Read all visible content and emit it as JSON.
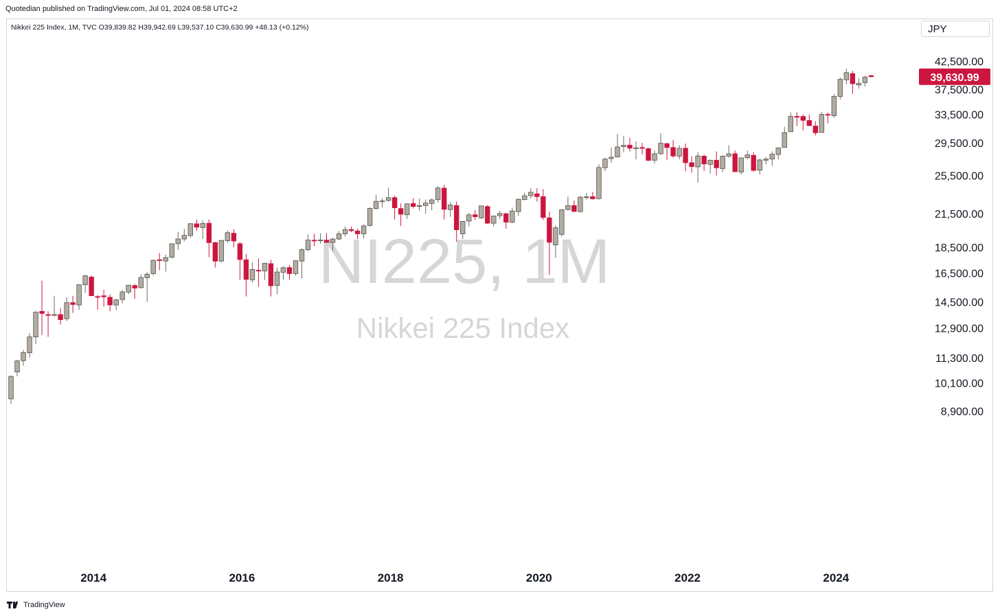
{
  "header": {
    "published_text": "Quotedian published on TradingView.com, Jul 01, 2024 08:58 UTC+2",
    "legend_text": "Nikkei 225 Index, 1M, TVC  O39,839.82  H39,942.69  L39,537.10  C39,630.99  +48.13 (+0.12%)"
  },
  "currency_label": "JPY",
  "footer": {
    "brand": "TradingView"
  },
  "colors": {
    "up": "#b2ada4",
    "down": "#cc163f",
    "price_tag": "#cc163f",
    "watermark": "#d6d6d6"
  },
  "watermark": {
    "symbol": "NI225, 1M",
    "name": "Nikkei 225 Index"
  },
  "chart_data": {
    "type": "candlestick",
    "title": "Nikkei 225 Index, 1M, TVC",
    "scale": "log",
    "y_tick_labels": [
      "42,500.00",
      "37,500.00",
      "33,500.00",
      "29,500.00",
      "25,500.00",
      "21,500.00",
      "18,500.00",
      "16,500.00",
      "14,500.00",
      "12,900.00",
      "11,300.00",
      "10,100.00",
      "8,900.00"
    ],
    "y_ticks": [
      42500,
      37500,
      33500,
      29500,
      25500,
      21500,
      18500,
      16500,
      14500,
      12900,
      11300,
      10100,
      8900
    ],
    "x_tick_labels": [
      "2014",
      "2016",
      "2018",
      "2020",
      "2022",
      "2024"
    ],
    "x_ticks": [
      "2014-01",
      "2016-01",
      "2018-01",
      "2020-01",
      "2022-01",
      "2024-01"
    ],
    "last_price_label": "39,630.99",
    "last_price": 39630.99,
    "series": [
      {
        "t": "2012-12",
        "o": 9400,
        "h": 10430,
        "l": 9200,
        "c": 10395
      },
      {
        "t": "2013-01",
        "o": 10600,
        "h": 11200,
        "l": 10400,
        "c": 11140
      },
      {
        "t": "2013-02",
        "o": 11150,
        "h": 11700,
        "l": 10900,
        "c": 11560
      },
      {
        "t": "2013-03",
        "o": 11550,
        "h": 12600,
        "l": 11300,
        "c": 12400
      },
      {
        "t": "2013-04",
        "o": 12400,
        "h": 13900,
        "l": 12000,
        "c": 13850
      },
      {
        "t": "2013-05",
        "o": 13900,
        "h": 15940,
        "l": 12500,
        "c": 13770
      },
      {
        "t": "2013-06",
        "o": 13700,
        "h": 13900,
        "l": 12400,
        "c": 13680
      },
      {
        "t": "2013-07",
        "o": 13650,
        "h": 14900,
        "l": 13600,
        "c": 13700
      },
      {
        "t": "2013-08",
        "o": 13700,
        "h": 14100,
        "l": 13100,
        "c": 13390
      },
      {
        "t": "2013-09",
        "o": 13450,
        "h": 14800,
        "l": 13300,
        "c": 14450
      },
      {
        "t": "2013-10",
        "o": 14450,
        "h": 14900,
        "l": 13800,
        "c": 14330
      },
      {
        "t": "2013-11",
        "o": 14300,
        "h": 15700,
        "l": 14000,
        "c": 15650
      },
      {
        "t": "2013-12",
        "o": 15650,
        "h": 16350,
        "l": 15100,
        "c": 16290
      },
      {
        "t": "2014-01",
        "o": 16200,
        "h": 16300,
        "l": 14900,
        "c": 14900
      },
      {
        "t": "2014-02",
        "o": 14850,
        "h": 14950,
        "l": 14000,
        "c": 14840
      },
      {
        "t": "2014-03",
        "o": 14900,
        "h": 15300,
        "l": 14200,
        "c": 14830
      },
      {
        "t": "2014-04",
        "o": 14800,
        "h": 15000,
        "l": 13900,
        "c": 14300
      },
      {
        "t": "2014-05",
        "o": 14300,
        "h": 14700,
        "l": 13970,
        "c": 14630
      },
      {
        "t": "2014-06",
        "o": 14650,
        "h": 15300,
        "l": 14400,
        "c": 15160
      },
      {
        "t": "2014-07",
        "o": 15150,
        "h": 15650,
        "l": 15000,
        "c": 15620
      },
      {
        "t": "2014-08",
        "o": 15600,
        "h": 15700,
        "l": 14700,
        "c": 15420
      },
      {
        "t": "2014-09",
        "o": 15450,
        "h": 16400,
        "l": 15400,
        "c": 16170
      },
      {
        "t": "2014-10",
        "o": 16150,
        "h": 16550,
        "l": 14500,
        "c": 16410
      },
      {
        "t": "2014-11",
        "o": 16450,
        "h": 17500,
        "l": 16300,
        "c": 17460
      },
      {
        "t": "2014-12",
        "o": 17500,
        "h": 18030,
        "l": 16700,
        "c": 17450
      },
      {
        "t": "2015-01",
        "o": 17400,
        "h": 17900,
        "l": 16600,
        "c": 17670
      },
      {
        "t": "2015-02",
        "o": 17700,
        "h": 18800,
        "l": 17600,
        "c": 18800
      },
      {
        "t": "2015-03",
        "o": 18800,
        "h": 19800,
        "l": 18300,
        "c": 19200
      },
      {
        "t": "2015-04",
        "o": 19200,
        "h": 20100,
        "l": 19000,
        "c": 19520
      },
      {
        "t": "2015-05",
        "o": 19500,
        "h": 20600,
        "l": 19300,
        "c": 20560
      },
      {
        "t": "2015-06",
        "o": 20550,
        "h": 20950,
        "l": 19900,
        "c": 20240
      },
      {
        "t": "2015-07",
        "o": 20200,
        "h": 20850,
        "l": 19200,
        "c": 20580
      },
      {
        "t": "2015-08",
        "o": 20600,
        "h": 20950,
        "l": 17700,
        "c": 18890
      },
      {
        "t": "2015-09",
        "o": 18900,
        "h": 18950,
        "l": 16900,
        "c": 17390
      },
      {
        "t": "2015-10",
        "o": 17400,
        "h": 19100,
        "l": 17300,
        "c": 19080
      },
      {
        "t": "2015-11",
        "o": 19050,
        "h": 19950,
        "l": 18900,
        "c": 19750
      },
      {
        "t": "2015-12",
        "o": 19700,
        "h": 20050,
        "l": 18500,
        "c": 19030
      },
      {
        "t": "2016-01",
        "o": 18800,
        "h": 18950,
        "l": 16000,
        "c": 17520
      },
      {
        "t": "2016-02",
        "o": 17500,
        "h": 17950,
        "l": 14860,
        "c": 16030
      },
      {
        "t": "2016-03",
        "o": 16000,
        "h": 17300,
        "l": 15800,
        "c": 16760
      },
      {
        "t": "2016-04",
        "o": 16700,
        "h": 17600,
        "l": 15500,
        "c": 16670
      },
      {
        "t": "2016-05",
        "o": 16650,
        "h": 17250,
        "l": 16000,
        "c": 17230
      },
      {
        "t": "2016-06",
        "o": 17200,
        "h": 17500,
        "l": 14860,
        "c": 15580
      },
      {
        "t": "2016-07",
        "o": 15600,
        "h": 16900,
        "l": 15000,
        "c": 16570
      },
      {
        "t": "2016-08",
        "o": 16550,
        "h": 17000,
        "l": 16000,
        "c": 16890
      },
      {
        "t": "2016-09",
        "o": 16900,
        "h": 17100,
        "l": 16000,
        "c": 16450
      },
      {
        "t": "2016-10",
        "o": 16450,
        "h": 17450,
        "l": 16300,
        "c": 17430
      },
      {
        "t": "2016-11",
        "o": 17400,
        "h": 18400,
        "l": 16100,
        "c": 18310
      },
      {
        "t": "2016-12",
        "o": 18300,
        "h": 19600,
        "l": 18200,
        "c": 19110
      },
      {
        "t": "2017-01",
        "o": 19100,
        "h": 19650,
        "l": 18600,
        "c": 19040
      },
      {
        "t": "2017-02",
        "o": 19050,
        "h": 19700,
        "l": 18800,
        "c": 19120
      },
      {
        "t": "2017-03",
        "o": 19100,
        "h": 19700,
        "l": 18900,
        "c": 18910
      },
      {
        "t": "2017-04",
        "o": 18900,
        "h": 19300,
        "l": 18200,
        "c": 19200
      },
      {
        "t": "2017-05",
        "o": 19200,
        "h": 19900,
        "l": 19100,
        "c": 19650
      },
      {
        "t": "2017-06",
        "o": 19650,
        "h": 20300,
        "l": 19400,
        "c": 20030
      },
      {
        "t": "2017-07",
        "o": 20030,
        "h": 20300,
        "l": 19800,
        "c": 19930
      },
      {
        "t": "2017-08",
        "o": 19900,
        "h": 20100,
        "l": 19200,
        "c": 19650
      },
      {
        "t": "2017-09",
        "o": 19650,
        "h": 20500,
        "l": 19250,
        "c": 20360
      },
      {
        "t": "2017-10",
        "o": 20400,
        "h": 22100,
        "l": 20300,
        "c": 22010
      },
      {
        "t": "2017-11",
        "o": 22000,
        "h": 23400,
        "l": 21900,
        "c": 22720
      },
      {
        "t": "2017-12",
        "o": 22700,
        "h": 23050,
        "l": 22100,
        "c": 22760
      },
      {
        "t": "2018-01",
        "o": 22800,
        "h": 24150,
        "l": 22700,
        "c": 23100
      },
      {
        "t": "2018-02",
        "o": 23100,
        "h": 23300,
        "l": 20950,
        "c": 22070
      },
      {
        "t": "2018-03",
        "o": 22000,
        "h": 22500,
        "l": 20350,
        "c": 21450
      },
      {
        "t": "2018-04",
        "o": 21400,
        "h": 22500,
        "l": 21000,
        "c": 22470
      },
      {
        "t": "2018-05",
        "o": 22500,
        "h": 23050,
        "l": 22000,
        "c": 22200
      },
      {
        "t": "2018-06",
        "o": 22200,
        "h": 23000,
        "l": 21800,
        "c": 22300
      },
      {
        "t": "2018-07",
        "o": 22300,
        "h": 22900,
        "l": 21500,
        "c": 22550
      },
      {
        "t": "2018-08",
        "o": 22500,
        "h": 23000,
        "l": 21850,
        "c": 22870
      },
      {
        "t": "2018-09",
        "o": 22900,
        "h": 24300,
        "l": 22600,
        "c": 24120
      },
      {
        "t": "2018-10",
        "o": 24100,
        "h": 24450,
        "l": 20950,
        "c": 21920
      },
      {
        "t": "2018-11",
        "o": 21900,
        "h": 22650,
        "l": 21200,
        "c": 22350
      },
      {
        "t": "2018-12",
        "o": 22300,
        "h": 22700,
        "l": 18950,
        "c": 20010
      },
      {
        "t": "2019-01",
        "o": 19650,
        "h": 20800,
        "l": 19200,
        "c": 20770
      },
      {
        "t": "2019-02",
        "o": 20800,
        "h": 21550,
        "l": 20300,
        "c": 21390
      },
      {
        "t": "2019-03",
        "o": 21400,
        "h": 21850,
        "l": 20900,
        "c": 21210
      },
      {
        "t": "2019-04",
        "o": 21100,
        "h": 22300,
        "l": 21000,
        "c": 22260
      },
      {
        "t": "2019-05",
        "o": 22200,
        "h": 22350,
        "l": 20550,
        "c": 20600
      },
      {
        "t": "2019-06",
        "o": 20600,
        "h": 21300,
        "l": 20300,
        "c": 21280
      },
      {
        "t": "2019-07",
        "o": 21300,
        "h": 21800,
        "l": 21000,
        "c": 21520
      },
      {
        "t": "2019-08",
        "o": 21500,
        "h": 21600,
        "l": 20100,
        "c": 20700
      },
      {
        "t": "2019-09",
        "o": 20700,
        "h": 22100,
        "l": 20600,
        "c": 21760
      },
      {
        "t": "2019-10",
        "o": 21700,
        "h": 23000,
        "l": 21300,
        "c": 22930
      },
      {
        "t": "2019-11",
        "o": 22900,
        "h": 23600,
        "l": 22800,
        "c": 23290
      },
      {
        "t": "2019-12",
        "o": 23300,
        "h": 24100,
        "l": 23000,
        "c": 23660
      },
      {
        "t": "2020-01",
        "o": 23500,
        "h": 24100,
        "l": 22700,
        "c": 23200
      },
      {
        "t": "2020-02",
        "o": 23200,
        "h": 24000,
        "l": 20900,
        "c": 21140
      },
      {
        "t": "2020-03",
        "o": 21100,
        "h": 21700,
        "l": 16350,
        "c": 18920
      },
      {
        "t": "2020-04",
        "o": 18700,
        "h": 20400,
        "l": 17650,
        "c": 20190
      },
      {
        "t": "2020-05",
        "o": 19600,
        "h": 21900,
        "l": 19400,
        "c": 21880
      },
      {
        "t": "2020-06",
        "o": 21900,
        "h": 23200,
        "l": 21800,
        "c": 22290
      },
      {
        "t": "2020-07",
        "o": 22300,
        "h": 22800,
        "l": 21700,
        "c": 21710
      },
      {
        "t": "2020-08",
        "o": 21700,
        "h": 23300,
        "l": 21600,
        "c": 23140
      },
      {
        "t": "2020-09",
        "o": 23100,
        "h": 23600,
        "l": 22900,
        "c": 23180
      },
      {
        "t": "2020-10",
        "o": 23200,
        "h": 23700,
        "l": 22900,
        "c": 22980
      },
      {
        "t": "2020-11",
        "o": 23000,
        "h": 26800,
        "l": 22900,
        "c": 26430
      },
      {
        "t": "2020-12",
        "o": 26400,
        "h": 27600,
        "l": 26000,
        "c": 27440
      },
      {
        "t": "2021-01",
        "o": 27500,
        "h": 28900,
        "l": 27000,
        "c": 27660
      },
      {
        "t": "2021-02",
        "o": 27700,
        "h": 30700,
        "l": 27700,
        "c": 28970
      },
      {
        "t": "2021-03",
        "o": 29000,
        "h": 30400,
        "l": 28300,
        "c": 29180
      },
      {
        "t": "2021-04",
        "o": 29200,
        "h": 30200,
        "l": 28400,
        "c": 28810
      },
      {
        "t": "2021-05",
        "o": 28800,
        "h": 29700,
        "l": 27400,
        "c": 28860
      },
      {
        "t": "2021-06",
        "o": 28900,
        "h": 29500,
        "l": 28000,
        "c": 28790
      },
      {
        "t": "2021-07",
        "o": 28750,
        "h": 28850,
        "l": 27200,
        "c": 27280
      },
      {
        "t": "2021-08",
        "o": 27300,
        "h": 28500,
        "l": 26900,
        "c": 28090
      },
      {
        "t": "2021-09",
        "o": 28100,
        "h": 30800,
        "l": 28000,
        "c": 29450
      },
      {
        "t": "2021-10",
        "o": 29400,
        "h": 29500,
        "l": 27300,
        "c": 28890
      },
      {
        "t": "2021-11",
        "o": 28900,
        "h": 29900,
        "l": 27600,
        "c": 27820
      },
      {
        "t": "2021-12",
        "o": 27800,
        "h": 29200,
        "l": 27400,
        "c": 28790
      },
      {
        "t": "2022-01",
        "o": 28800,
        "h": 29400,
        "l": 26000,
        "c": 27000
      },
      {
        "t": "2022-02",
        "o": 27000,
        "h": 27800,
        "l": 25800,
        "c": 26530
      },
      {
        "t": "2022-03",
        "o": 26500,
        "h": 28300,
        "l": 24680,
        "c": 27820
      },
      {
        "t": "2022-04",
        "o": 27800,
        "h": 28000,
        "l": 26000,
        "c": 26850
      },
      {
        "t": "2022-05",
        "o": 26800,
        "h": 27400,
        "l": 25700,
        "c": 27280
      },
      {
        "t": "2022-06",
        "o": 27300,
        "h": 28400,
        "l": 25500,
        "c": 26390
      },
      {
        "t": "2022-07",
        "o": 26300,
        "h": 27900,
        "l": 25900,
        "c": 27800
      },
      {
        "t": "2022-08",
        "o": 27800,
        "h": 29200,
        "l": 27600,
        "c": 28090
      },
      {
        "t": "2022-09",
        "o": 28100,
        "h": 28500,
        "l": 25900,
        "c": 25940
      },
      {
        "t": "2022-10",
        "o": 25900,
        "h": 27600,
        "l": 25600,
        "c": 27590
      },
      {
        "t": "2022-11",
        "o": 27600,
        "h": 28500,
        "l": 27400,
        "c": 27970
      },
      {
        "t": "2022-12",
        "o": 27900,
        "h": 28300,
        "l": 25900,
        "c": 26090
      },
      {
        "t": "2023-01",
        "o": 26100,
        "h": 27500,
        "l": 25600,
        "c": 27330
      },
      {
        "t": "2023-02",
        "o": 27300,
        "h": 27700,
        "l": 26800,
        "c": 27450
      },
      {
        "t": "2023-03",
        "o": 27450,
        "h": 28400,
        "l": 26600,
        "c": 28040
      },
      {
        "t": "2023-04",
        "o": 28000,
        "h": 28900,
        "l": 27400,
        "c": 28850
      },
      {
        "t": "2023-05",
        "o": 28900,
        "h": 31700,
        "l": 28900,
        "c": 30890
      },
      {
        "t": "2023-06",
        "o": 31000,
        "h": 33800,
        "l": 31000,
        "c": 33190
      },
      {
        "t": "2023-07",
        "o": 33200,
        "h": 33800,
        "l": 31800,
        "c": 33170
      },
      {
        "t": "2023-08",
        "o": 33200,
        "h": 33500,
        "l": 31200,
        "c": 32620
      },
      {
        "t": "2023-09",
        "o": 32600,
        "h": 33500,
        "l": 31800,
        "c": 31860
      },
      {
        "t": "2023-10",
        "o": 31800,
        "h": 32500,
        "l": 30500,
        "c": 30860
      },
      {
        "t": "2023-11",
        "o": 30900,
        "h": 33900,
        "l": 30900,
        "c": 33490
      },
      {
        "t": "2023-12",
        "o": 33500,
        "h": 33800,
        "l": 32200,
        "c": 33460
      },
      {
        "t": "2024-01",
        "o": 33300,
        "h": 36700,
        "l": 33000,
        "c": 36290
      },
      {
        "t": "2024-02",
        "o": 36300,
        "h": 39500,
        "l": 35800,
        "c": 39170
      },
      {
        "t": "2024-03",
        "o": 39100,
        "h": 41100,
        "l": 38300,
        "c": 40370
      },
      {
        "t": "2024-04",
        "o": 40200,
        "h": 40700,
        "l": 36700,
        "c": 38410
      },
      {
        "t": "2024-05",
        "o": 38200,
        "h": 39400,
        "l": 37600,
        "c": 38490
      },
      {
        "t": "2024-06",
        "o": 38600,
        "h": 39800,
        "l": 37900,
        "c": 39580
      },
      {
        "t": "2024-07",
        "o": 39839.82,
        "h": 39942.69,
        "l": 39537.1,
        "c": 39630.99
      }
    ]
  }
}
